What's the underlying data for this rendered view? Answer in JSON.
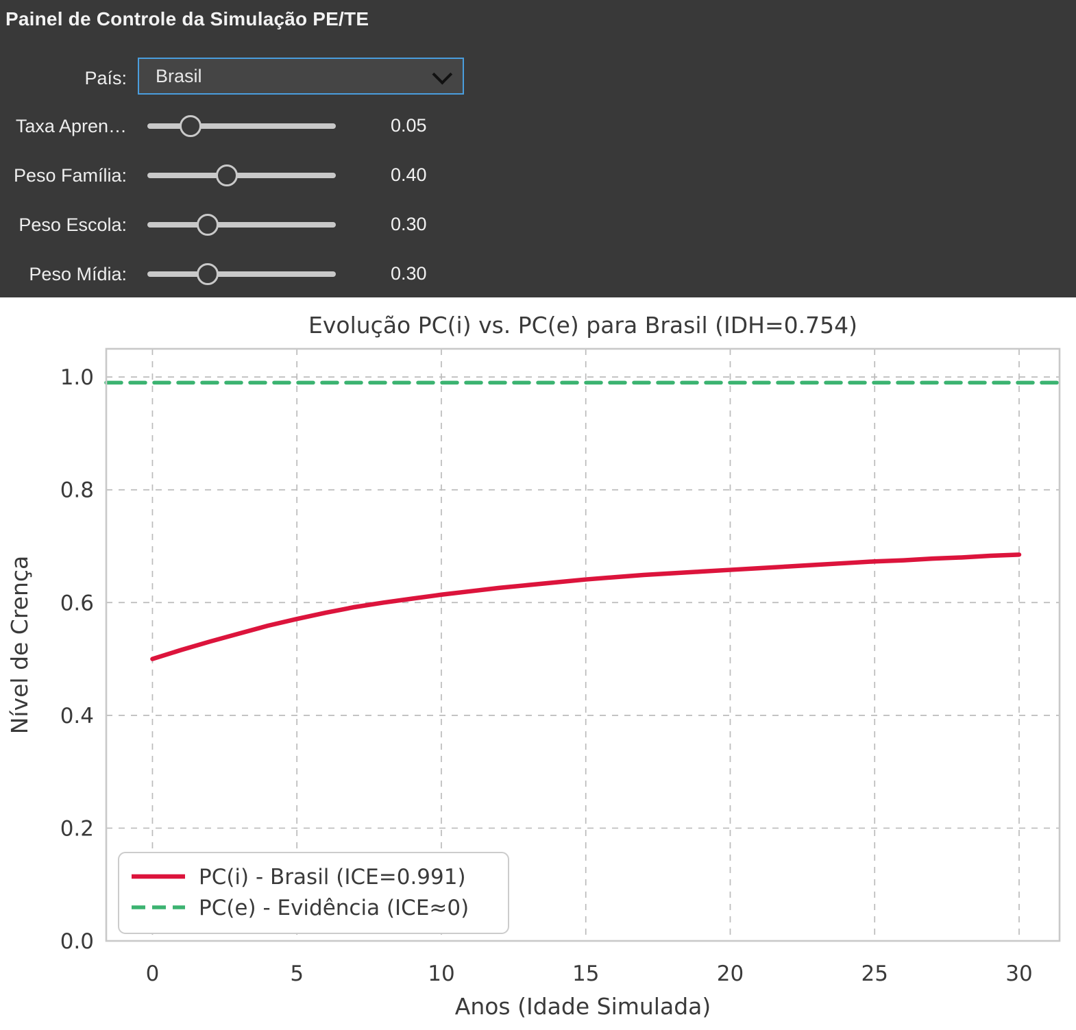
{
  "panel": {
    "title": "Painel de Controle da Simulação PE/TE",
    "country": {
      "label": "País:",
      "value": "Brasil"
    },
    "sliders": [
      {
        "label": "Taxa Apren…",
        "value": "0.05",
        "position_pct": 23
      },
      {
        "label": "Peso Família:",
        "value": "0.40",
        "position_pct": 42
      },
      {
        "label": "Peso Escola:",
        "value": "0.30",
        "position_pct": 32
      },
      {
        "label": "Peso Mídia:",
        "value": "0.30",
        "position_pct": 32
      }
    ],
    "colors": {
      "panel_background": "#393939",
      "dropdown_border": "#4a9ede",
      "text": "#f2f2f2",
      "track": "#c9c9c9"
    }
  },
  "chart_data": {
    "type": "line",
    "title": "Evolução PC(i) vs. PC(e) para Brasil (IDH=0.754)",
    "xlabel": "Anos (Idade Simulada)",
    "ylabel": "Nível de Crença",
    "xlim": [
      -1.6,
      31.4
    ],
    "ylim": [
      0.0,
      1.05
    ],
    "xticks": [
      0,
      5,
      10,
      15,
      20,
      25,
      30
    ],
    "yticks": [
      "0.0",
      "0.2",
      "0.4",
      "0.6",
      "0.8",
      "1.0"
    ],
    "grid": true,
    "grid_style": "dashed",
    "legend_position": "lower left",
    "text_color": "#3a3a3a",
    "frame_color": "#c9c9c9",
    "grid_color": "#bbbbbb",
    "series": [
      {
        "name": "PC(i) - Brasil (ICE=0.991)",
        "color": "#dc143c",
        "style": "solid",
        "width": 6.5,
        "x": [
          0,
          1,
          2,
          3,
          4,
          5,
          6,
          7,
          8,
          9,
          10,
          11,
          12,
          13,
          14,
          15,
          16,
          17,
          18,
          19,
          20,
          21,
          22,
          23,
          24,
          25,
          26,
          27,
          28,
          29,
          30
        ],
        "y": [
          0.5,
          0.516,
          0.531,
          0.545,
          0.559,
          0.571,
          0.582,
          0.592,
          0.6,
          0.607,
          0.614,
          0.62,
          0.626,
          0.631,
          0.636,
          0.641,
          0.645,
          0.649,
          0.652,
          0.655,
          0.658,
          0.661,
          0.664,
          0.667,
          0.67,
          0.673,
          0.675,
          0.678,
          0.68,
          0.683,
          0.685
        ]
      },
      {
        "name": "PC(e) - Evidência (ICE≈0)",
        "color": "#3cb371",
        "style": "dashed",
        "width": 5.5,
        "hline": 0.99
      }
    ]
  }
}
